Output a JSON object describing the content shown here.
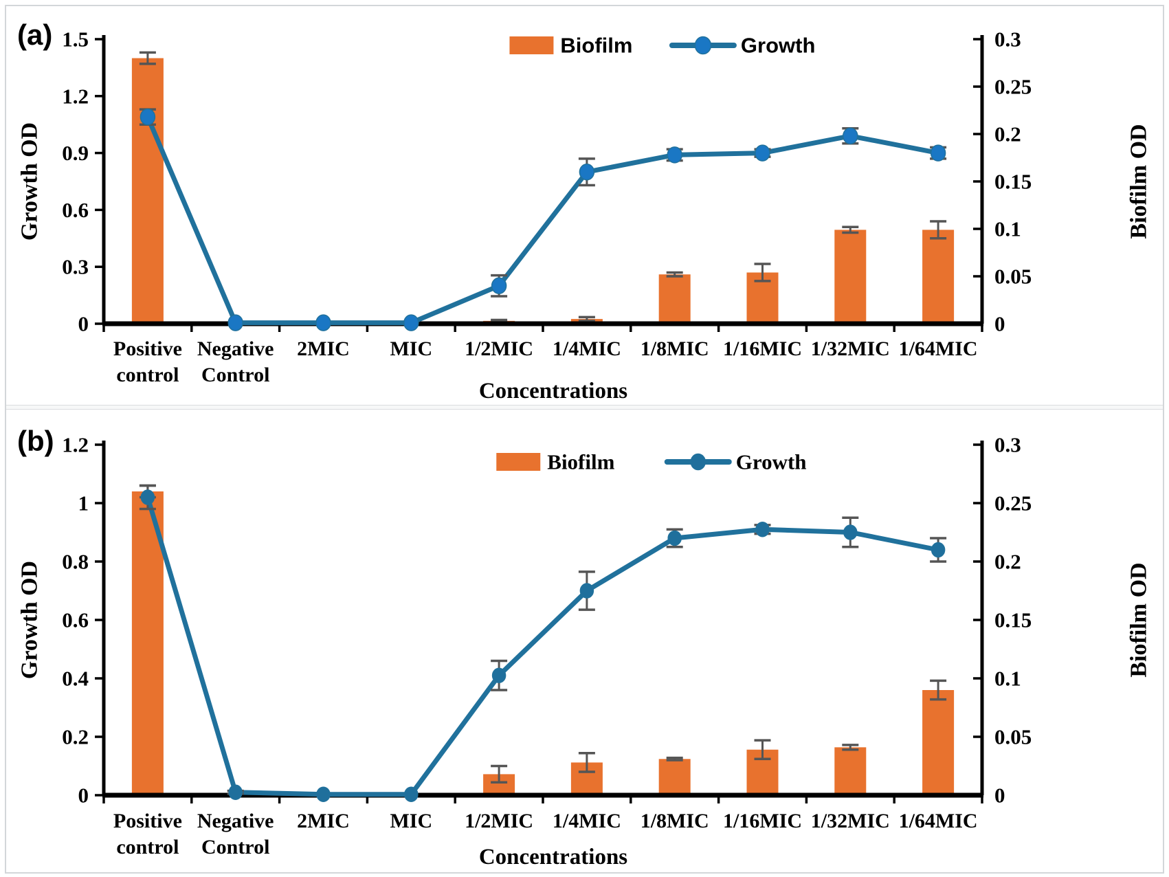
{
  "figure": {
    "panel_letters": [
      "(a)",
      "(b)"
    ],
    "colors": {
      "bar": "#E8722E",
      "line": "#20719C",
      "marker_a": "#1A77C4",
      "marker_b": "#1F6F9C",
      "error_bar": "#555555",
      "axis": "#000000",
      "text": "#000000",
      "panel_border": "#d3d6d9"
    }
  },
  "chart_data": [
    {
      "panel": "(a)",
      "type": "combo-bar-line",
      "categories": [
        "Positive\ncontrol",
        "Negative\nControl",
        "2MIC",
        "MIC",
        "1/2MIC",
        "1/4MIC",
        "1/8MIC",
        "1/16MIC",
        "1/32MIC",
        "1/64MIC"
      ],
      "xlabel": "Concentrations",
      "left_axis": {
        "label": "Growth OD",
        "ticks": [
          0,
          0.3,
          0.6,
          0.9,
          1.2,
          1.5
        ],
        "range": [
          0,
          1.5
        ]
      },
      "right_axis": {
        "label": "Biofilm OD",
        "ticks": [
          0,
          0.05,
          0.1,
          0.15,
          0.2,
          0.25,
          0.3
        ],
        "range": [
          0,
          0.3
        ]
      },
      "legend_position": "top-center",
      "grid": false,
      "series": [
        {
          "name": "Biofilm",
          "type": "bar",
          "axis": "right",
          "values": [
            0.28,
            0,
            0,
            0,
            0.003,
            0.005,
            0.052,
            0.054,
            0.099,
            0.099
          ],
          "errors": [
            0.006,
            0,
            0,
            0,
            0.001,
            0.002,
            0.002,
            0.009,
            0.003,
            0.009
          ]
        },
        {
          "name": "Growth",
          "type": "line",
          "axis": "left",
          "values": [
            1.09,
            0.005,
            0.005,
            0.005,
            0.2,
            0.8,
            0.89,
            0.9,
            0.99,
            0.9
          ],
          "errors": [
            0.04,
            0,
            0,
            0,
            0.055,
            0.07,
            0.03,
            0.02,
            0.04,
            0.03
          ]
        }
      ]
    },
    {
      "panel": "(b)",
      "type": "combo-bar-line",
      "categories": [
        "Positive\ncontrol",
        "Negative\nControl",
        "2MIC",
        "MIC",
        "1/2MIC",
        "1/4MIC",
        "1/8MIC",
        "1/16MIC",
        "1/32MIC",
        "1/64MIC"
      ],
      "xlabel": "Concentrations",
      "left_axis": {
        "label": "Growth OD",
        "ticks": [
          0,
          0.2,
          0.4,
          0.6,
          0.8,
          1,
          1.2
        ],
        "range": [
          0,
          1.2
        ]
      },
      "right_axis": {
        "label": "Biofilm OD",
        "ticks": [
          0,
          0.05,
          0.1,
          0.15,
          0.2,
          0.25,
          0.3
        ],
        "range": [
          0,
          0.3
        ]
      },
      "legend_position": "top-center",
      "grid": false,
      "series": [
        {
          "name": "Biofilm",
          "type": "bar",
          "axis": "right",
          "values": [
            0.26,
            0,
            0,
            0,
            0.018,
            0.028,
            0.031,
            0.039,
            0.041,
            0.09
          ],
          "errors": [
            0.005,
            0,
            0,
            0,
            0.007,
            0.008,
            0.001,
            0.008,
            0.002,
            0.008
          ]
        },
        {
          "name": "Growth",
          "type": "line",
          "axis": "left",
          "values": [
            1.02,
            0.01,
            0.003,
            0.003,
            0.41,
            0.7,
            0.88,
            0.91,
            0.9,
            0.84
          ],
          "errors": [
            0.04,
            0.005,
            0,
            0,
            0.05,
            0.065,
            0.03,
            0.015,
            0.05,
            0.04
          ]
        }
      ]
    }
  ]
}
